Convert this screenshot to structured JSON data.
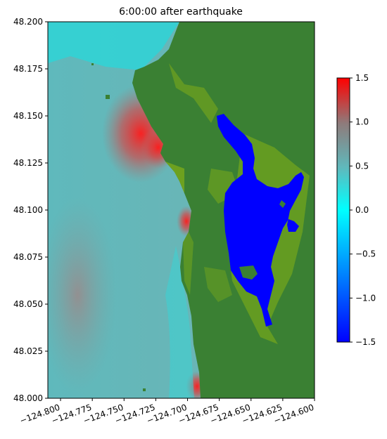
{
  "map": {
    "title": "6:00:00 after earthquake",
    "x_ticks": [
      "−124.800",
      "−124.775",
      "−124.750",
      "−124.725",
      "−124.700",
      "−124.675",
      "−124.650",
      "−124.625",
      "−124.600"
    ],
    "y_ticks": [
      "48.200",
      "48.175",
      "48.150",
      "48.125",
      "48.100",
      "48.075",
      "48.050",
      "48.025",
      "48.000"
    ],
    "x_range": [
      -124.81,
      -124.6
    ],
    "y_range": [
      48.0,
      48.2
    ],
    "land_color": "#3a8033",
    "shallow_color": "#7aa91a",
    "dry_lake_color": "#0000ff"
  },
  "colorbar": {
    "ticks": [
      "1.5",
      "1.0",
      "0.5",
      "0.0",
      "−0.5",
      "−1.0",
      "−1.5"
    ],
    "range": [
      -1.5,
      1.5
    ],
    "colors": [
      "#0000ff",
      "#00ffff",
      "#7f7f7f",
      "#ff0000"
    ]
  }
}
